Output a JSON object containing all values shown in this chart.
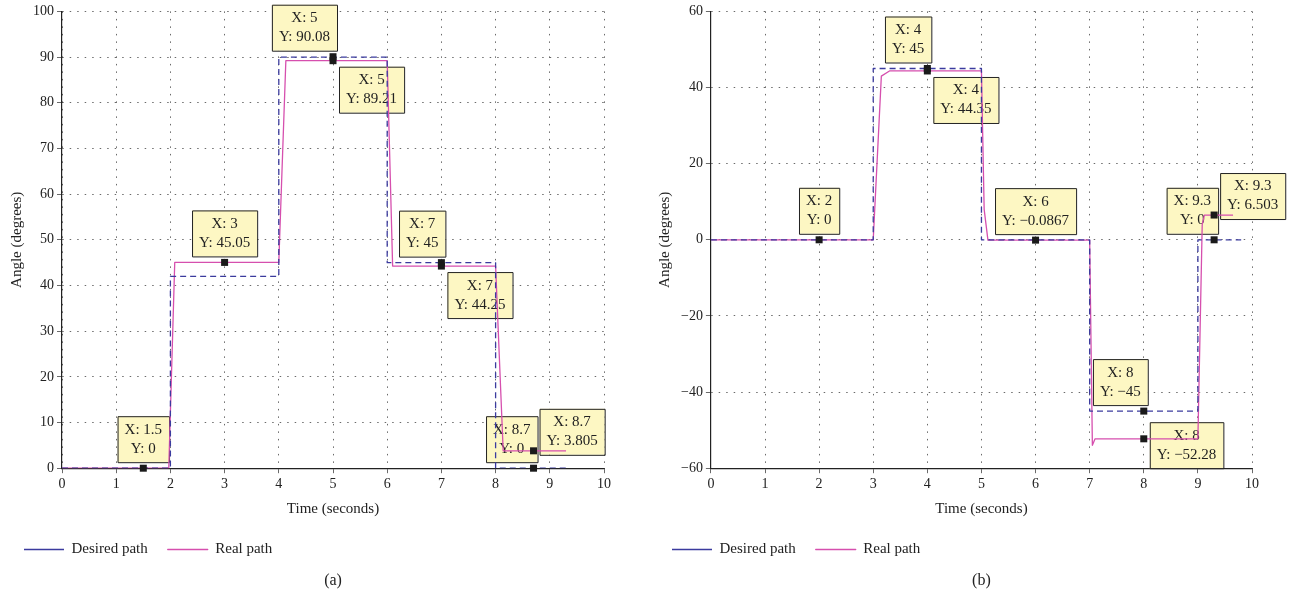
{
  "chart_data": [
    {
      "type": "line",
      "xlabel": "Time (seconds)",
      "ylabel": "Angle (degrees)",
      "xlim": [
        0,
        10
      ],
      "xticks": [
        0,
        1,
        2,
        3,
        4,
        5,
        6,
        7,
        8,
        9,
        10
      ],
      "ylim": [
        0,
        100
      ],
      "yticks": [
        0,
        10,
        20,
        30,
        40,
        50,
        60,
        70,
        80,
        90,
        100
      ],
      "grid": true,
      "legend": "bottom",
      "series": [
        {
          "name": "Desired path",
          "color": "#3b3b9e",
          "line_style": "dashed",
          "x": [
            0,
            2,
            2,
            4,
            4,
            6,
            6,
            8,
            8,
            9.3
          ],
          "values": [
            0,
            0,
            42,
            42,
            90,
            90,
            45,
            45,
            0,
            0
          ]
        },
        {
          "name": "Real path",
          "color": "#d64fae",
          "line_style": "solid",
          "x": [
            0,
            1.97,
            2.08,
            4,
            4.13,
            6,
            6.1,
            8,
            8.14,
            9.3
          ],
          "values": [
            0,
            0,
            45.05,
            45.05,
            89.21,
            89.21,
            44.25,
            44.25,
            3.805,
            3.805
          ]
        }
      ],
      "annotations": [
        {
          "text": "X: 1.5\nY: 0",
          "x": 1.5,
          "y": 0
        },
        {
          "text": "X: 3\nY: 45.05",
          "x": 3,
          "y": 45.05
        },
        {
          "text": "X: 5\nY: 90.08",
          "x": 5,
          "y": 90.08
        },
        {
          "text": "X: 5\nY: 89.21",
          "x": 5,
          "y": 89.21
        },
        {
          "text": "X: 7\nY: 45",
          "x": 7,
          "y": 45
        },
        {
          "text": "X: 7\nY: 44.25",
          "x": 7,
          "y": 44.25
        },
        {
          "text": "X: 8.7\nY: 0",
          "x": 8.7,
          "y": 0
        },
        {
          "text": "X: 8.7\nY: 3.805",
          "x": 8.7,
          "y": 3.805
        },
        "(a)"
      ]
    },
    {
      "type": "line",
      "xlabel": "Time (seconds)",
      "ylabel": "Angle (degrees)",
      "xlim": [
        0,
        10
      ],
      "xticks": [
        0,
        1,
        2,
        3,
        4,
        5,
        6,
        7,
        8,
        9,
        10
      ],
      "ylim": [
        -60,
        60
      ],
      "yticks": [
        {
          "value": -60,
          "label": "−60"
        },
        {
          "value": -40,
          "label": "−40"
        },
        {
          "value": -20,
          "label": "−20"
        },
        0,
        20,
        40,
        60
      ],
      "grid": true,
      "legend": "bottom",
      "series": [
        {
          "name": "Desired path",
          "color": "#3b3b9e",
          "line_style": "dashed",
          "x": [
            0,
            3,
            3,
            5,
            5,
            7,
            7,
            9,
            9,
            9.8
          ],
          "values": [
            0,
            0,
            45,
            45,
            0,
            0,
            -45,
            -45,
            0,
            0
          ]
        },
        {
          "name": "Real path",
          "color": "#d64fae",
          "line_style": "solid",
          "x": [
            0,
            3,
            3.15,
            3.3,
            5,
            5.05,
            5.12,
            7,
            7.05,
            7.1,
            9,
            9.08,
            9.12,
            9.65
          ],
          "values": [
            0,
            0,
            43,
            44.35,
            44.35,
            8,
            -0.0867,
            -0.0867,
            -54,
            -52.28,
            -52.28,
            4,
            6.503,
            6.503
          ]
        }
      ],
      "annotations": [
        {
          "text": "X: 2\nY: 0",
          "x": 2,
          "y": 0
        },
        {
          "text": "X: 4\nY: 45",
          "x": 4,
          "y": 45
        },
        {
          "text": "X: 4\nY: 44.35",
          "x": 4,
          "y": 44.35
        },
        {
          "text": "X: 6\nY: −0.0867",
          "x": 6,
          "y": -0.0867
        },
        {
          "text": "X: 8\nY: −45",
          "x": 8,
          "y": -45
        },
        {
          "text": "X: 8\nY: −52.28",
          "x": 8,
          "y": -52.28
        },
        {
          "text": "X: 9.3\nY: 0",
          "x": 9.3,
          "y": 0
        },
        {
          "text": "X: 9.3\nY: 6.503",
          "x": 9.3,
          "y": 6.503
        },
        "(b)"
      ]
    }
  ]
}
